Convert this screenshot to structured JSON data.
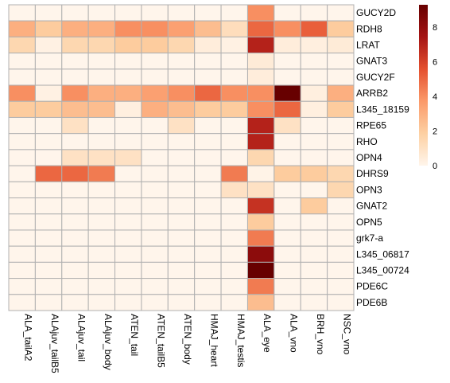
{
  "chart_data": {
    "type": "heatmap",
    "title": "",
    "xlabel": "",
    "ylabel": "",
    "columns": [
      "ALA_tailA2",
      "ALAjuv_tailB5",
      "ALAjuv_tail",
      "ALAjuv_body",
      "ATEN_tail",
      "ATEN_tailB5",
      "ATEN_body",
      "HMAJ_heart",
      "HMAJ_testis",
      "ALA_eye",
      "ALA_vno",
      "BRH_vno",
      "NSC_vno"
    ],
    "rows": [
      "GUCY2D",
      "RDH8",
      "LRAT",
      "GNAT3",
      "GUCY2F",
      "ARRB2",
      "L345_18159",
      "RPE65",
      "RHO",
      "OPN4",
      "DHRS9",
      "OPN3",
      "GNAT2",
      "OPN5",
      "grk7-a",
      "L345_06817",
      "L345_00724",
      "PDE6C",
      "PDE6B"
    ],
    "values": [
      [
        0,
        0,
        0,
        0,
        0,
        0,
        0,
        0,
        0,
        4,
        0,
        0,
        0
      ],
      [
        3,
        2,
        3,
        3,
        4,
        4,
        3.5,
        2.5,
        1.2,
        5,
        4,
        5.2,
        2
      ],
      [
        1.5,
        0.2,
        1.5,
        1.5,
        2,
        2,
        1.5,
        0.4,
        0.2,
        7,
        0.4,
        0.3,
        0.5
      ],
      [
        0,
        0,
        0,
        0,
        0,
        0,
        0,
        0,
        0,
        0.5,
        0,
        0,
        0
      ],
      [
        0,
        0,
        0,
        0,
        0,
        0,
        0,
        0,
        0,
        0.4,
        0,
        0,
        0
      ],
      [
        4,
        0.2,
        4,
        3,
        3,
        3.5,
        4,
        5,
        4,
        4,
        9.3,
        0.3,
        3
      ],
      [
        2,
        2,
        2.5,
        2.5,
        0.3,
        3,
        2.5,
        2,
        2,
        4,
        5,
        0.3,
        2
      ],
      [
        0,
        0,
        1,
        0,
        0,
        0,
        1,
        0,
        0,
        7,
        1,
        0,
        0
      ],
      [
        0,
        0,
        0,
        0,
        0,
        0,
        0,
        0,
        0,
        7,
        0,
        0,
        0
      ],
      [
        0,
        0,
        1,
        1,
        1,
        0,
        0,
        0,
        0,
        1.5,
        0,
        0,
        0
      ],
      [
        0,
        5,
        5,
        4.5,
        0,
        0,
        0,
        0,
        4.5,
        0.1,
        2,
        2,
        1.5
      ],
      [
        0,
        0,
        0,
        0,
        0,
        0,
        0,
        0,
        1,
        1,
        0,
        0,
        1.5
      ],
      [
        0,
        0,
        0,
        0,
        0,
        0,
        0,
        0,
        0,
        6.5,
        0,
        2,
        0
      ],
      [
        0,
        0,
        0,
        0,
        0,
        0,
        0,
        0,
        0,
        2,
        0,
        0,
        0
      ],
      [
        0,
        0,
        0,
        0,
        0,
        0,
        0,
        0,
        0,
        4.5,
        0,
        0,
        0
      ],
      [
        0,
        0,
        0,
        0,
        0,
        0,
        0,
        0,
        0,
        8.2,
        0,
        0,
        0
      ],
      [
        0,
        0,
        0,
        0,
        0,
        0,
        0,
        0,
        0,
        9.3,
        0,
        0,
        0
      ],
      [
        0,
        0,
        0,
        0,
        0,
        0,
        0,
        0,
        0,
        4.5,
        0,
        0,
        0
      ],
      [
        0,
        0,
        0,
        0,
        0,
        0,
        0,
        0,
        0,
        2.5,
        0,
        0,
        0
      ]
    ],
    "color_scale": {
      "min": 0,
      "max": 9.3,
      "colors": [
        "#fff5eb",
        "#fdd0a2",
        "#fb9a6a",
        "#e4502f",
        "#a51414",
        "#670000"
      ],
      "ticks": [
        0,
        2,
        4,
        6,
        8
      ]
    },
    "legend_position": "top-right",
    "cell_border_color": "#b0b0b0",
    "grid": false
  }
}
